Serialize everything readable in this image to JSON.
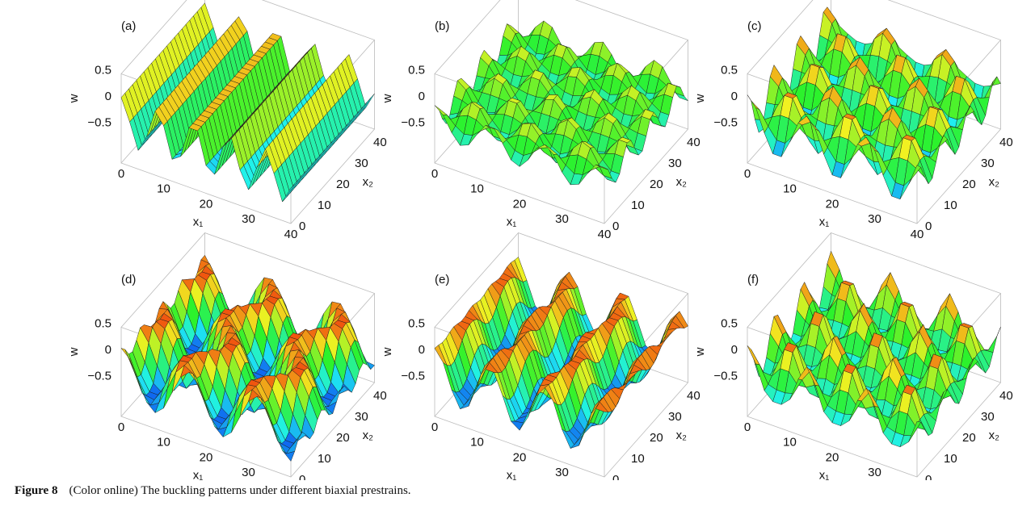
{
  "panels": [
    {
      "label": "(a)"
    },
    {
      "label": "(b)"
    },
    {
      "label": "(c)"
    },
    {
      "label": "(d)"
    },
    {
      "label": "(e)"
    },
    {
      "label": "(f)"
    }
  ],
  "axes": {
    "w_label": "w",
    "x1_label": "x₁",
    "x2_label": "x₂",
    "w_ticks": [
      "0.5",
      "0",
      "−0.5"
    ],
    "x1_ticks": [
      "0",
      "10",
      "20",
      "30",
      "40"
    ],
    "x2_ticks": [
      "0",
      "10",
      "20",
      "30",
      "40"
    ]
  },
  "caption": {
    "label": "Figure 8",
    "text": "(Color online) The buckling patterns under different biaxial prestrains."
  }
}
